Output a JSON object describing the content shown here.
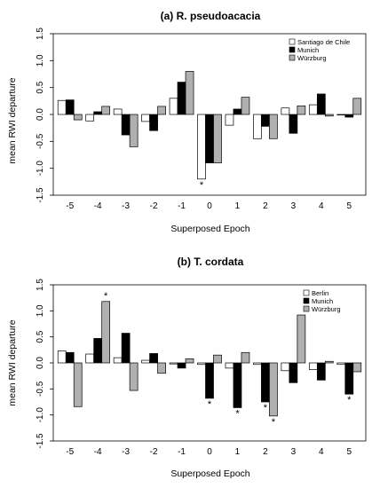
{
  "chart_data": [
    {
      "type": "bar",
      "title": "(a) R. pseudoacacia",
      "xlabel": "Superposed Epoch",
      "ylabel": "mean RWI departure",
      "ylim": [
        -1.5,
        1.5
      ],
      "yticks": [
        "-1.5",
        "-1.0",
        "-0.5",
        "0.0",
        "0.5",
        "1.0",
        "1.5"
      ],
      "categories": [
        "-5",
        "-4",
        "-3",
        "-2",
        "-1",
        "0",
        "1",
        "2",
        "3",
        "4",
        "5"
      ],
      "legend_position": "top-right",
      "series": [
        {
          "name": "Santiago de Chile",
          "color": "#ffffff",
          "values": [
            0.26,
            -0.12,
            0.1,
            -0.13,
            0.3,
            -1.2,
            -0.2,
            -0.45,
            0.12,
            0.18,
            0.0
          ]
        },
        {
          "name": "Munich",
          "color": "#000000",
          "values": [
            0.27,
            0.05,
            -0.38,
            -0.3,
            0.6,
            -0.9,
            0.1,
            -0.22,
            -0.35,
            0.38,
            -0.05
          ]
        },
        {
          "name": "Würzburg",
          "color": "#b0b0b0",
          "values": [
            -0.1,
            0.15,
            -0.6,
            0.15,
            0.8,
            -0.9,
            0.32,
            -0.45,
            0.16,
            -0.03,
            0.3
          ]
        }
      ],
      "significance_marks": [
        {
          "category": "0",
          "series": "Santiago de Chile",
          "label": "*"
        }
      ]
    },
    {
      "type": "bar",
      "title": "(b) T. cordata",
      "xlabel": "Superposed Epoch",
      "ylabel": "mean RWI departure",
      "ylim": [
        -1.5,
        1.5
      ],
      "yticks": [
        "-1.5",
        "-1.0",
        "-0.5",
        "0.0",
        "0.5",
        "1.0",
        "1.5"
      ],
      "categories": [
        "-5",
        "-4",
        "-3",
        "-2",
        "-1",
        "0",
        "1",
        "2",
        "3",
        "4",
        "5"
      ],
      "legend_position": "top-right",
      "series": [
        {
          "name": "Berlin",
          "color": "#ffffff",
          "values": [
            0.23,
            0.17,
            0.1,
            0.05,
            -0.02,
            -0.03,
            -0.1,
            -0.03,
            -0.15,
            -0.13,
            -0.03
          ]
        },
        {
          "name": "Munich",
          "color": "#000000",
          "values": [
            0.2,
            0.47,
            0.57,
            0.18,
            -0.1,
            -0.68,
            -0.86,
            -0.75,
            -0.38,
            -0.33,
            -0.6
          ]
        },
        {
          "name": "Würzburg",
          "color": "#b0b0b0",
          "values": [
            -0.84,
            1.18,
            -0.53,
            -0.2,
            0.08,
            0.15,
            0.2,
            -1.02,
            0.92,
            0.03,
            -0.17
          ]
        }
      ],
      "significance_marks": [
        {
          "category": "-4",
          "series": "Würzburg",
          "label": "*"
        },
        {
          "category": "0",
          "series": "Munich",
          "label": "*"
        },
        {
          "category": "1",
          "series": "Munich",
          "label": "*"
        },
        {
          "category": "2",
          "series": "Munich",
          "label": "*"
        },
        {
          "category": "2",
          "series": "Würzburg",
          "label": "*"
        },
        {
          "category": "5",
          "series": "Munich",
          "label": "*"
        }
      ]
    }
  ]
}
